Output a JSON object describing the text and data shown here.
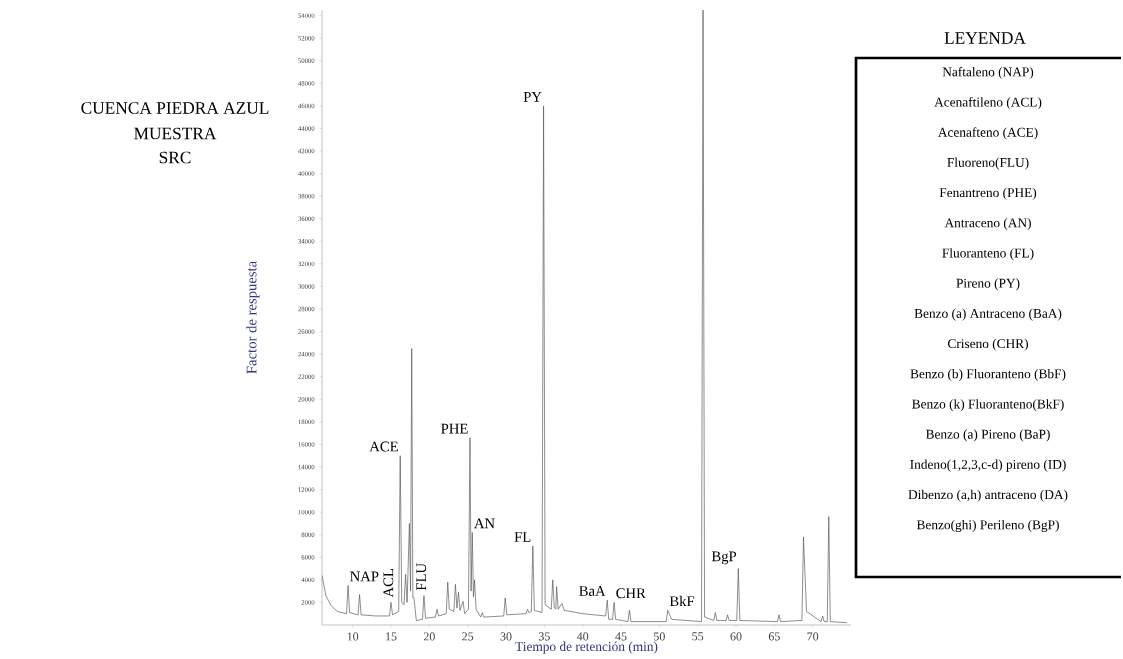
{
  "chart_data": {
    "type": "line",
    "title": "CUENCA PIEDRA AZUL",
    "subtitle": "MUESTRA SRC",
    "xlabel": "Tiempo de retención (min)",
    "ylabel": "Factor de respuesta",
    "xlim": [
      6,
      75
    ],
    "ylim": [
      0,
      54500
    ],
    "xticks": [
      10,
      15,
      20,
      25,
      30,
      35,
      40,
      45,
      50,
      55,
      60,
      65,
      70
    ],
    "yticks": [
      2000,
      4000,
      6000,
      8000,
      10000,
      12000,
      14000,
      16000,
      18000,
      20000,
      22000,
      24000,
      26000,
      28000,
      30000,
      32000,
      34000,
      36000,
      38000,
      40000,
      42000,
      44000,
      46000,
      48000,
      50000,
      52000,
      54000
    ],
    "series": [
      {
        "color": "#555555",
        "x": [
          6,
          6.5,
          7.2,
          8,
          9.2,
          9.4,
          9.6,
          10.7,
          10.9,
          11.1,
          13,
          14.8,
          15,
          15.2,
          16,
          16.2,
          16.4,
          16.7,
          16.9,
          17.1,
          17.4,
          17.55,
          17.7,
          17.85,
          18.0,
          18.3,
          19.1,
          19.3,
          19.5,
          20.8,
          21,
          21.2,
          22.2,
          22.4,
          22.6,
          23.2,
          23.4,
          23.6,
          23.8,
          24.0,
          24.4,
          24.6,
          25.1,
          25.3,
          25.45,
          25.6,
          25.75,
          25.9,
          26.1,
          26.7,
          26.9,
          27.1,
          29.7,
          29.9,
          30.1,
          32.6,
          32.8,
          33.0,
          33.3,
          33.5,
          33.7,
          34.7,
          34.9,
          35.1,
          35.9,
          36.1,
          36.3,
          36.5,
          36.6,
          36.8,
          37.3,
          37.6,
          40,
          43,
          43.2,
          43.4,
          43.9,
          44.1,
          44.3,
          45.9,
          46.1,
          46.3,
          50.9,
          51.1,
          51.6,
          55.5,
          55.7,
          55.9,
          57.1,
          57.3,
          57.5,
          58.7,
          58.9,
          59.1,
          60.1,
          60.3,
          60.5,
          65.4,
          65.6,
          65.8,
          68.6,
          68.8,
          69.2,
          71.1,
          71.3,
          71.5,
          71.9,
          72.1,
          72.3,
          74.5
        ],
        "values": [
          4400,
          2600,
          1700,
          1200,
          1000,
          3500,
          1100,
          900,
          2700,
          900,
          800,
          800,
          2000,
          900,
          1200,
          15000,
          2000,
          1800,
          4500,
          2000,
          9000,
          3000,
          24500,
          2400,
          2400,
          400,
          500,
          2600,
          600,
          700,
          1400,
          800,
          1000,
          3800,
          1400,
          1200,
          3600,
          1500,
          2900,
          1300,
          2100,
          1000,
          1400,
          16600,
          3000,
          8200,
          2500,
          4000,
          1400,
          700,
          1100,
          700,
          800,
          2400,
          900,
          1000,
          1400,
          1100,
          1200,
          7000,
          1300,
          1100,
          46000,
          1800,
          1400,
          4000,
          1500,
          1400,
          3400,
          1400,
          1900,
          1300,
          1000,
          800,
          2200,
          500,
          500,
          2000,
          500,
          300,
          1300,
          300,
          300,
          1300,
          500,
          300,
          54500,
          700,
          400,
          1100,
          400,
          400,
          900,
          400,
          400,
          5000,
          400,
          300,
          900,
          300,
          400,
          7800,
          1200,
          300,
          800,
          300,
          300,
          9600,
          300,
          200
        ]
      }
    ],
    "annotations": [
      {
        "text": "NAP",
        "x": 9.4,
        "y": 3500
      },
      {
        "text": "ACL",
        "x": 15,
        "y": 2000
      },
      {
        "text": "ACE",
        "x": 16.2,
        "y": 15000
      },
      {
        "text": "FLU",
        "x": 19.3,
        "y": 2600
      },
      {
        "text": "PHE",
        "x": 25.3,
        "y": 16600
      },
      {
        "text": "AN",
        "x": 25.6,
        "y": 8200
      },
      {
        "text": "FL",
        "x": 33.5,
        "y": 7000
      },
      {
        "text": "PY",
        "x": 34.9,
        "y": 46000
      },
      {
        "text": "BaA",
        "x": 43.2,
        "y": 2200
      },
      {
        "text": "CHR",
        "x": 44.1,
        "y": 2000
      },
      {
        "text": "BkF",
        "x": 51.1,
        "y": 1300
      },
      {
        "text": "BgP",
        "x": 60.3,
        "y": 5000
      },
      "LEYENDA",
      "Naftaleno (NAP)",
      "Acenaftileno (ACL)",
      "Acenafteno (ACE)",
      "Fluoreno(FLU)",
      "Fenantreno (PHE)",
      "Antraceno (AN)",
      "Fluoranteno (FL)",
      "Pireno (PY)",
      "Benzo (a) Antraceno (BaA)",
      "Criseno (CHR)",
      "Benzo (b) Fluoranteno (BbF)",
      "Benzo (k) Fluoranteno(BkF)",
      "Benzo (a) Pireno (BaP)",
      "Indeno(1,2,3,c-d) pireno (ID)",
      "Dibenzo (a,h) antraceno (DA)",
      "Benzo(ghi) Perileno (BgP)"
    ]
  }
}
